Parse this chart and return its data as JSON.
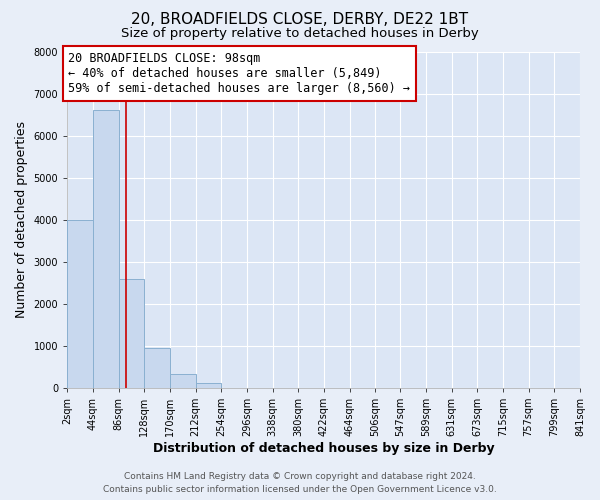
{
  "title": "20, BROADFIELDS CLOSE, DERBY, DE22 1BT",
  "subtitle": "Size of property relative to detached houses in Derby",
  "xlabel": "Distribution of detached houses by size in Derby",
  "ylabel": "Number of detached properties",
  "footer_line1": "Contains HM Land Registry data © Crown copyright and database right 2024.",
  "footer_line2": "Contains public sector information licensed under the Open Government Licence v3.0.",
  "bin_edges": [
    2,
    44,
    86,
    128,
    170,
    212,
    254,
    296,
    338,
    380,
    422,
    464,
    506,
    547,
    589,
    631,
    673,
    715,
    757,
    799,
    841
  ],
  "bin_labels": [
    "2sqm",
    "44sqm",
    "86sqm",
    "128sqm",
    "170sqm",
    "212sqm",
    "254sqm",
    "296sqm",
    "338sqm",
    "380sqm",
    "422sqm",
    "464sqm",
    "506sqm",
    "547sqm",
    "589sqm",
    "631sqm",
    "673sqm",
    "715sqm",
    "757sqm",
    "799sqm",
    "841sqm"
  ],
  "bar_values": [
    4000,
    6600,
    2600,
    950,
    320,
    120,
    0,
    0,
    0,
    0,
    0,
    0,
    0,
    0,
    0,
    0,
    0,
    0,
    0,
    0
  ],
  "bar_color": "#c8d8ee",
  "bar_edge_color": "#8ab0d0",
  "property_line_x": 98,
  "property_line_color": "#cc0000",
  "annotation_text_line1": "20 BROADFIELDS CLOSE: 98sqm",
  "annotation_text_line2": "← 40% of detached houses are smaller (5,849)",
  "annotation_text_line3": "59% of semi-detached houses are larger (8,560) →",
  "annotation_box_color": "#ffffff",
  "annotation_box_edge_color": "#cc0000",
  "ylim": [
    0,
    8000
  ],
  "background_color": "#e8eef8",
  "plot_bg_color": "#dce6f5",
  "grid_color": "#ffffff",
  "title_fontsize": 11,
  "subtitle_fontsize": 9.5,
  "axis_label_fontsize": 9,
  "tick_fontsize": 7,
  "annotation_fontsize": 8.5,
  "footer_fontsize": 6.5
}
